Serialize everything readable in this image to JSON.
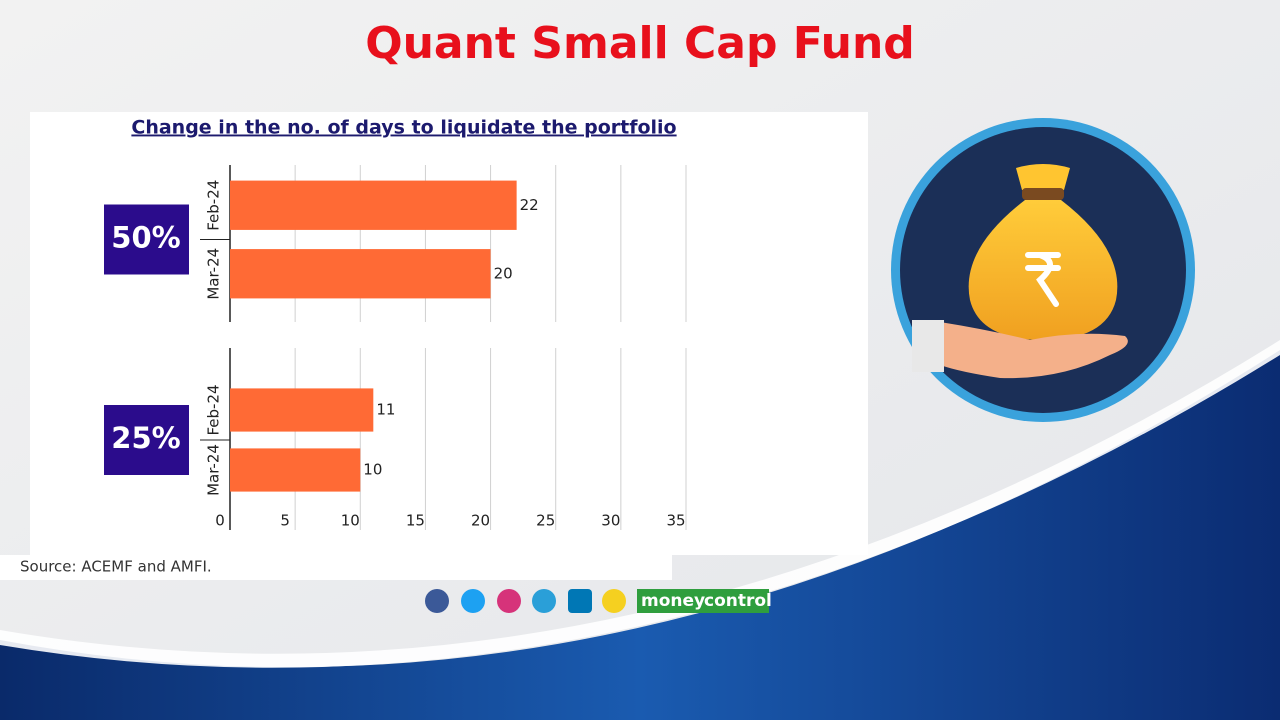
{
  "header": {
    "title": "Quant Small Cap Fund"
  },
  "chart_data": {
    "type": "bar",
    "orientation": "horizontal",
    "title": "Change in the no. of days to liquidate the portfolio",
    "color": "#ff6a35",
    "grid": true,
    "data_labels": true,
    "xlim": [
      0,
      35
    ],
    "xticks": [
      0,
      5,
      10,
      15,
      20,
      25,
      30,
      35
    ],
    "panels": [
      {
        "label": "50%",
        "categories": [
          "Feb-24",
          "Mar-24"
        ],
        "values": [
          22,
          20
        ]
      },
      {
        "label": "25%",
        "categories": [
          "Feb-24",
          "Mar-24"
        ],
        "values": [
          11,
          10
        ]
      }
    ]
  },
  "source": "Source: ACEMF and AMFI.",
  "brand": {
    "first": "money",
    "second": "control"
  }
}
